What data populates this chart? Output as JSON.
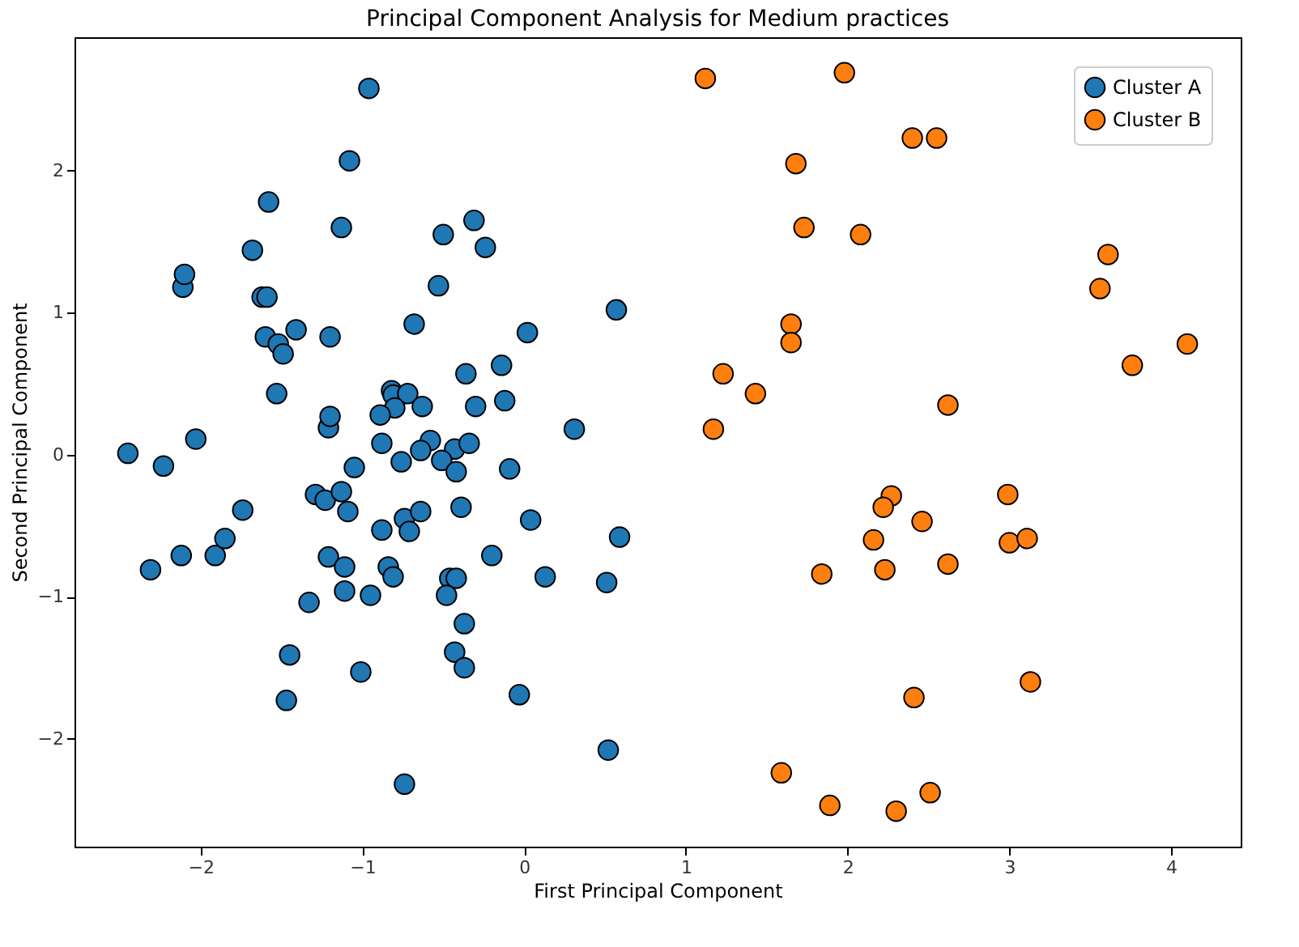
{
  "chart_data": {
    "type": "scatter",
    "title": "Principal Component Analysis for Medium practices",
    "xlabel": "First Principal Component",
    "ylabel": "Second Principal Component",
    "xlim": [
      -2.78,
      4.43
    ],
    "ylim": [
      -2.76,
      2.94
    ],
    "xticks": [
      -2,
      -1,
      0,
      1,
      2,
      3,
      4
    ],
    "yticks": [
      -2,
      -1,
      0,
      1,
      2
    ],
    "grid": false,
    "legend": "top right",
    "marker": "circle",
    "series": [
      {
        "name": "Cluster A",
        "color": "#1f77b4",
        "x": [
          -2.45,
          -2.23,
          -2.03,
          -2.11,
          -2.1,
          -1.68,
          -1.58,
          -1.62,
          -1.59,
          -1.6,
          -1.52,
          -1.49,
          -1.41,
          -1.53,
          -1.2,
          -1.21,
          -1.2,
          -1.13,
          -2.31,
          -2.12,
          -1.91,
          -1.85,
          -1.74,
          -1.33,
          -1.45,
          -1.47,
          -1.29,
          -1.23,
          -1.21,
          -0.96,
          -1.08,
          -0.68,
          -0.5,
          -0.31,
          -0.24,
          -0.53,
          0.57,
          0.02,
          -0.14,
          -0.36,
          -0.12,
          -0.3,
          -0.82,
          -0.81,
          -0.72,
          -0.63,
          -0.8,
          -0.89,
          0.31,
          -0.88,
          -0.58,
          -0.64,
          -0.43,
          -0.34,
          -0.51,
          -0.76,
          -1.05,
          -0.09,
          -0.42,
          -1.13,
          -1.09,
          -0.39,
          0.04,
          0.59,
          -0.88,
          -0.74,
          -0.71,
          -0.64,
          -0.2,
          -1.11,
          -0.84,
          -0.81,
          0.13,
          0.51,
          -0.46,
          -0.42,
          -0.48,
          -1.11,
          -0.95,
          -0.37,
          -0.43,
          -0.37,
          -1.01,
          -0.03,
          0.52,
          -0.74
        ],
        "values": [
          0.01,
          -0.08,
          0.11,
          1.18,
          1.27,
          1.44,
          1.78,
          1.11,
          1.11,
          0.83,
          0.78,
          0.71,
          0.88,
          0.43,
          0.83,
          0.19,
          0.27,
          1.6,
          -0.81,
          -0.71,
          -0.71,
          -0.59,
          -0.39,
          -1.04,
          -1.41,
          -1.73,
          -0.28,
          -0.32,
          -0.72,
          2.58,
          2.07,
          0.92,
          1.55,
          1.65,
          1.46,
          1.19,
          1.02,
          0.86,
          0.63,
          0.57,
          0.38,
          0.34,
          0.45,
          0.42,
          0.43,
          0.34,
          0.33,
          0.28,
          0.18,
          0.08,
          0.1,
          0.03,
          0.04,
          0.08,
          -0.04,
          -0.05,
          -0.09,
          -0.1,
          -0.12,
          -0.26,
          -0.4,
          -0.37,
          -0.46,
          -0.58,
          -0.53,
          -0.45,
          -0.54,
          -0.4,
          -0.71,
          -0.79,
          -0.79,
          -0.86,
          -0.86,
          -0.9,
          -0.87,
          -0.87,
          -0.99,
          -0.96,
          -0.99,
          -1.19,
          -1.39,
          -1.5,
          -1.53,
          -1.69,
          -2.08,
          -2.32
        ]
      },
      {
        "name": "Cluster B",
        "color": "#ff7f0e",
        "x": [
          1.12,
          1.98,
          2.4,
          2.55,
          1.68,
          1.73,
          2.08,
          3.61,
          3.56,
          4.1,
          3.76,
          1.65,
          1.65,
          1.23,
          1.43,
          1.17,
          2.62,
          2.27,
          2.22,
          2.46,
          2.99,
          3.0,
          3.11,
          2.16,
          2.23,
          2.62,
          1.84,
          3.13,
          2.41,
          1.59,
          1.89,
          2.3,
          2.51
        ],
        "values": [
          2.65,
          2.69,
          2.23,
          2.23,
          2.05,
          1.6,
          1.55,
          1.41,
          1.17,
          0.78,
          0.63,
          0.92,
          0.79,
          0.57,
          0.43,
          0.18,
          0.35,
          -0.29,
          -0.37,
          -0.47,
          -0.28,
          -0.62,
          -0.59,
          -0.6,
          -0.81,
          -0.77,
          -0.84,
          -1.6,
          -1.71,
          -2.24,
          -2.47,
          -2.51,
          -2.38
        ]
      }
    ]
  }
}
